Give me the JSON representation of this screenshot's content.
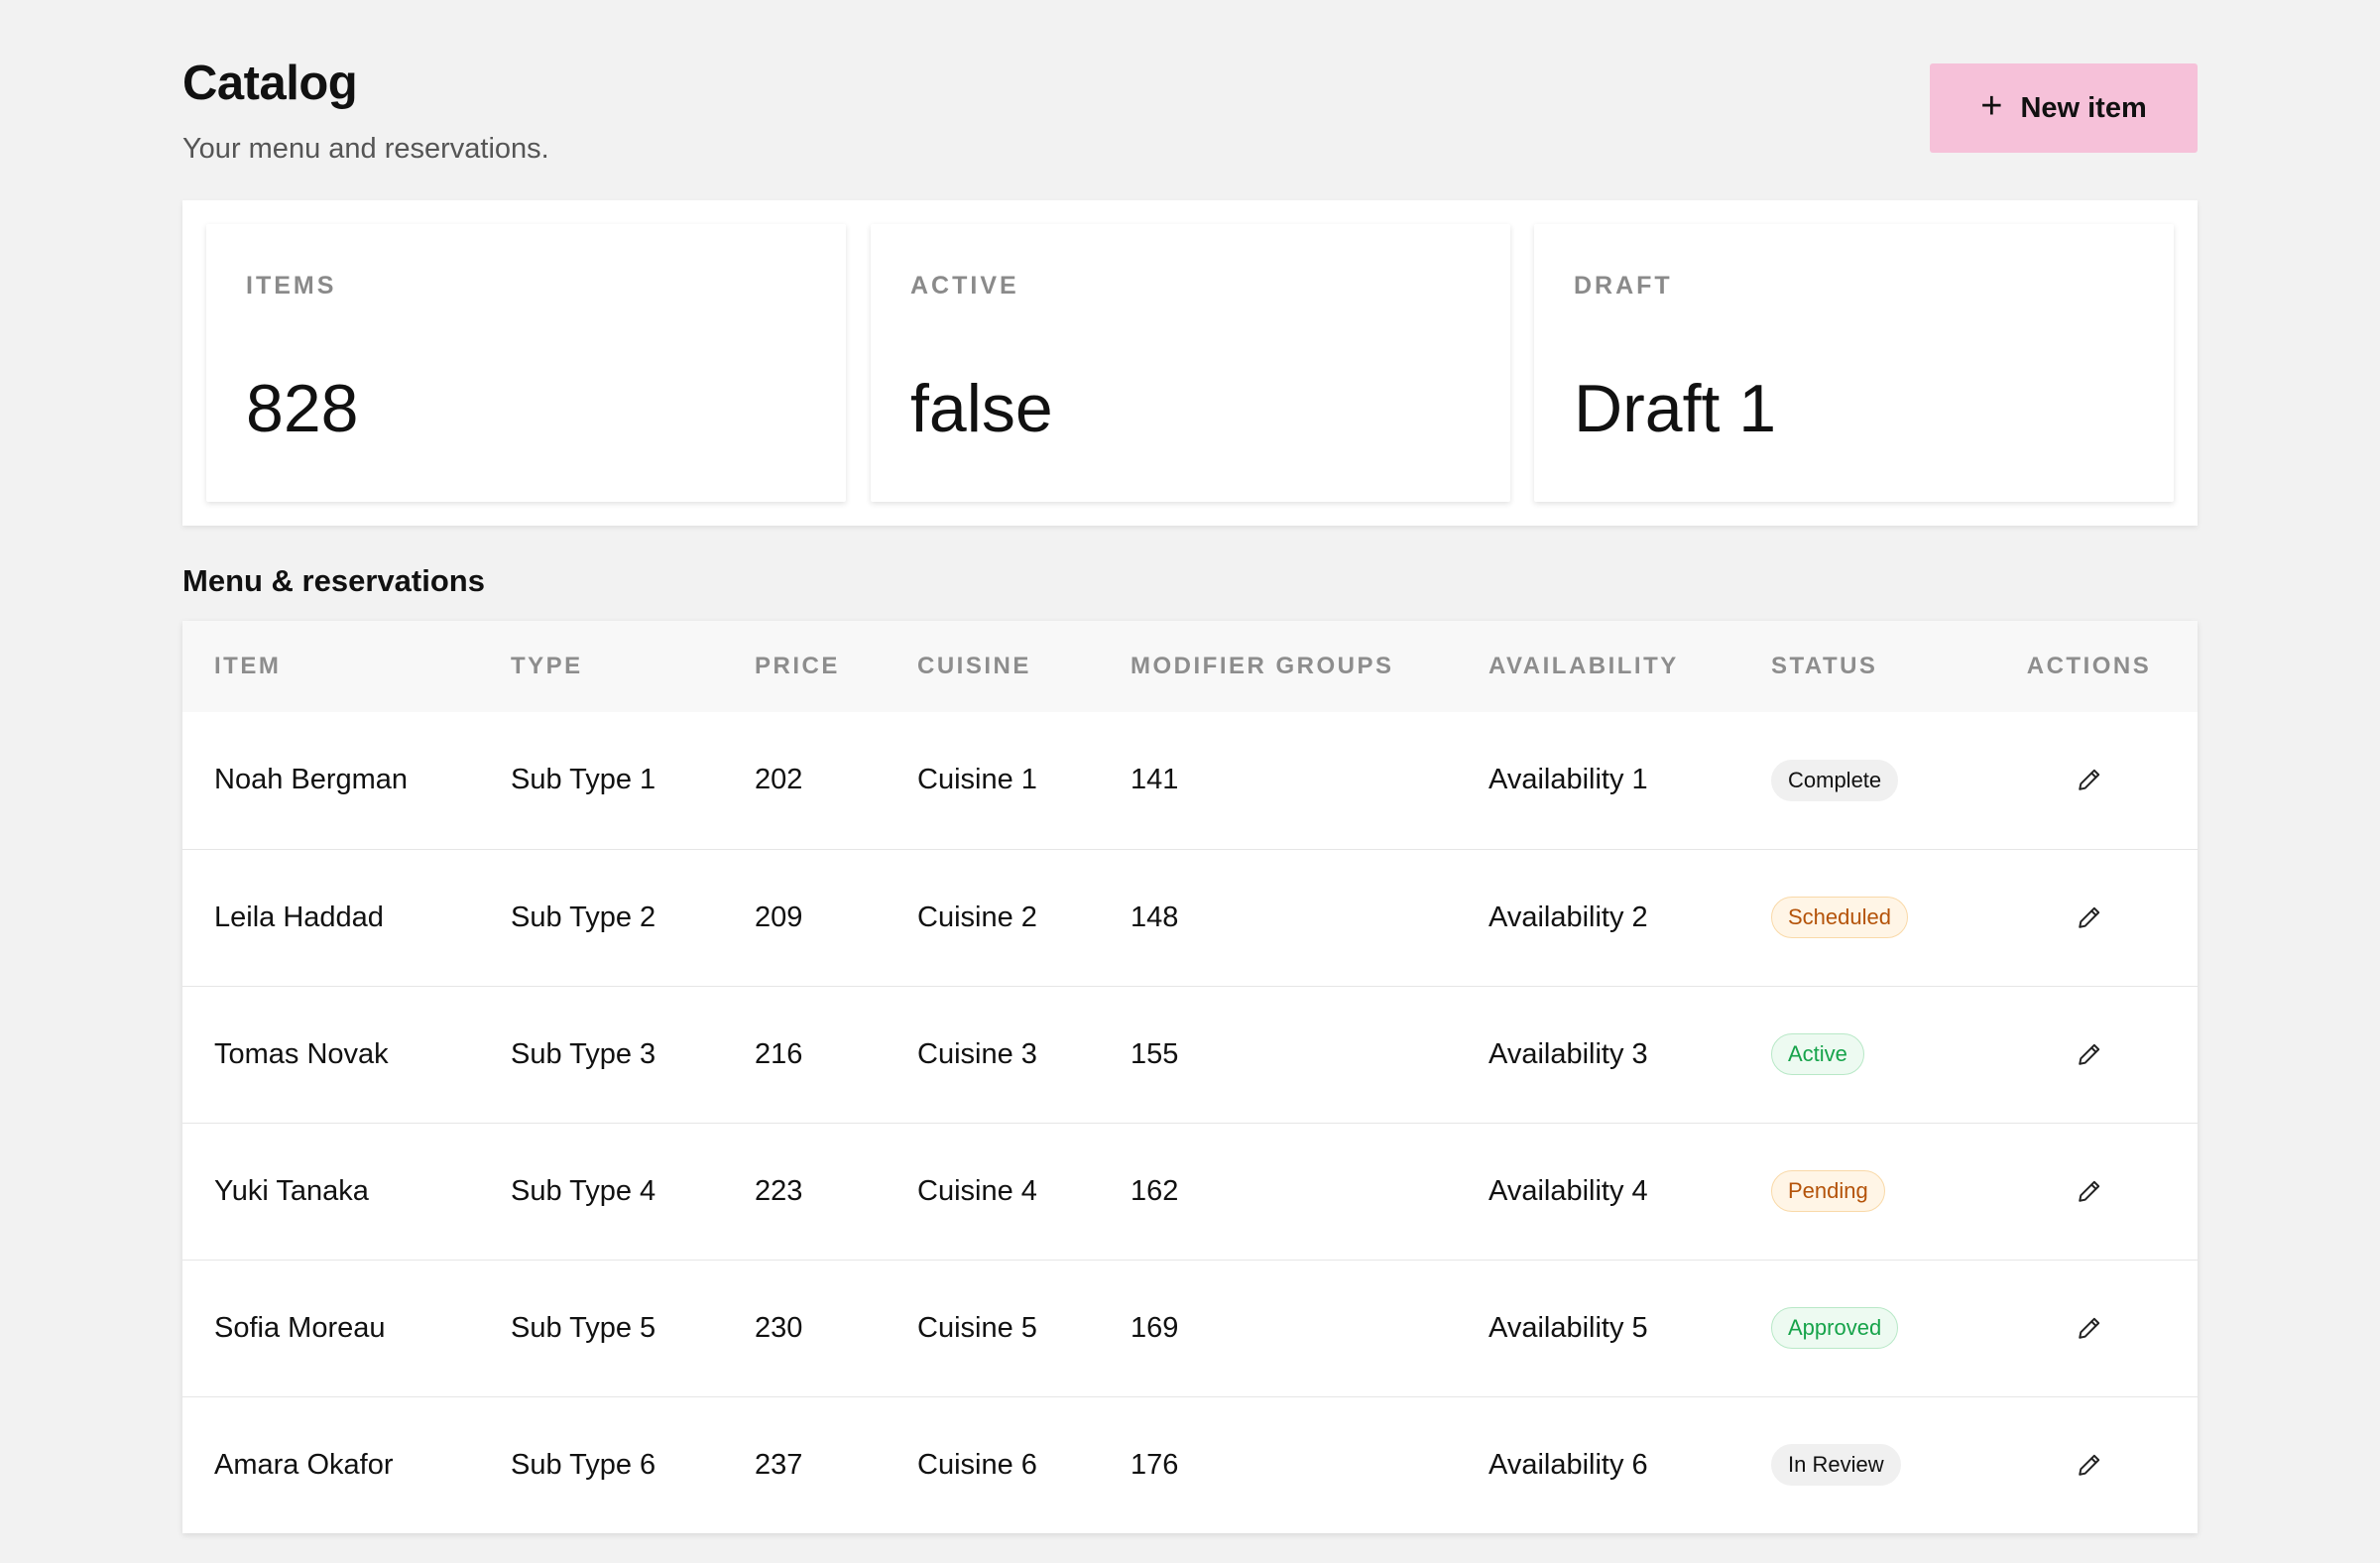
{
  "header": {
    "title": "Catalog",
    "subtitle": "Your menu and reservations.",
    "new_button_label": "New item",
    "new_button_icon": "plus-icon"
  },
  "stats": [
    {
      "label": "ITEMS",
      "value": "828"
    },
    {
      "label": "ACTIVE",
      "value": "false"
    },
    {
      "label": "DRAFT",
      "value": "Draft 1"
    }
  ],
  "section_title": "Menu & reservations",
  "table": {
    "columns": [
      "ITEM",
      "TYPE",
      "PRICE",
      "CUISINE",
      "MODIFIER GROUPS",
      "AVAILABILITY",
      "STATUS",
      "ACTIONS"
    ],
    "rows": [
      {
        "item": "Noah Bergman",
        "type": "Sub Type 1",
        "price": "202",
        "cuisine": "Cuisine 1",
        "modifier_groups": "141",
        "availability": "Availability 1",
        "status": "Complete",
        "status_tone": "neutral"
      },
      {
        "item": "Leila Haddad",
        "type": "Sub Type 2",
        "price": "209",
        "cuisine": "Cuisine 2",
        "modifier_groups": "148",
        "availability": "Availability 2",
        "status": "Scheduled",
        "status_tone": "orange"
      },
      {
        "item": "Tomas Novak",
        "type": "Sub Type 3",
        "price": "216",
        "cuisine": "Cuisine 3",
        "modifier_groups": "155",
        "availability": "Availability 3",
        "status": "Active",
        "status_tone": "green"
      },
      {
        "item": "Yuki Tanaka",
        "type": "Sub Type 4",
        "price": "223",
        "cuisine": "Cuisine 4",
        "modifier_groups": "162",
        "availability": "Availability 4",
        "status": "Pending",
        "status_tone": "orange"
      },
      {
        "item": "Sofia Moreau",
        "type": "Sub Type 5",
        "price": "230",
        "cuisine": "Cuisine 5",
        "modifier_groups": "169",
        "availability": "Availability 5",
        "status": "Approved",
        "status_tone": "green"
      },
      {
        "item": "Amara Okafor",
        "type": "Sub Type 6",
        "price": "237",
        "cuisine": "Cuisine 6",
        "modifier_groups": "176",
        "availability": "Availability 6",
        "status": "In Review",
        "status_tone": "neutral"
      }
    ],
    "action_icon": "pencil-icon"
  },
  "colors": {
    "background": "#f2f2f2",
    "primary_button": "#f6c1d9",
    "status_orange": "#b45309",
    "status_green": "#16a34a"
  }
}
